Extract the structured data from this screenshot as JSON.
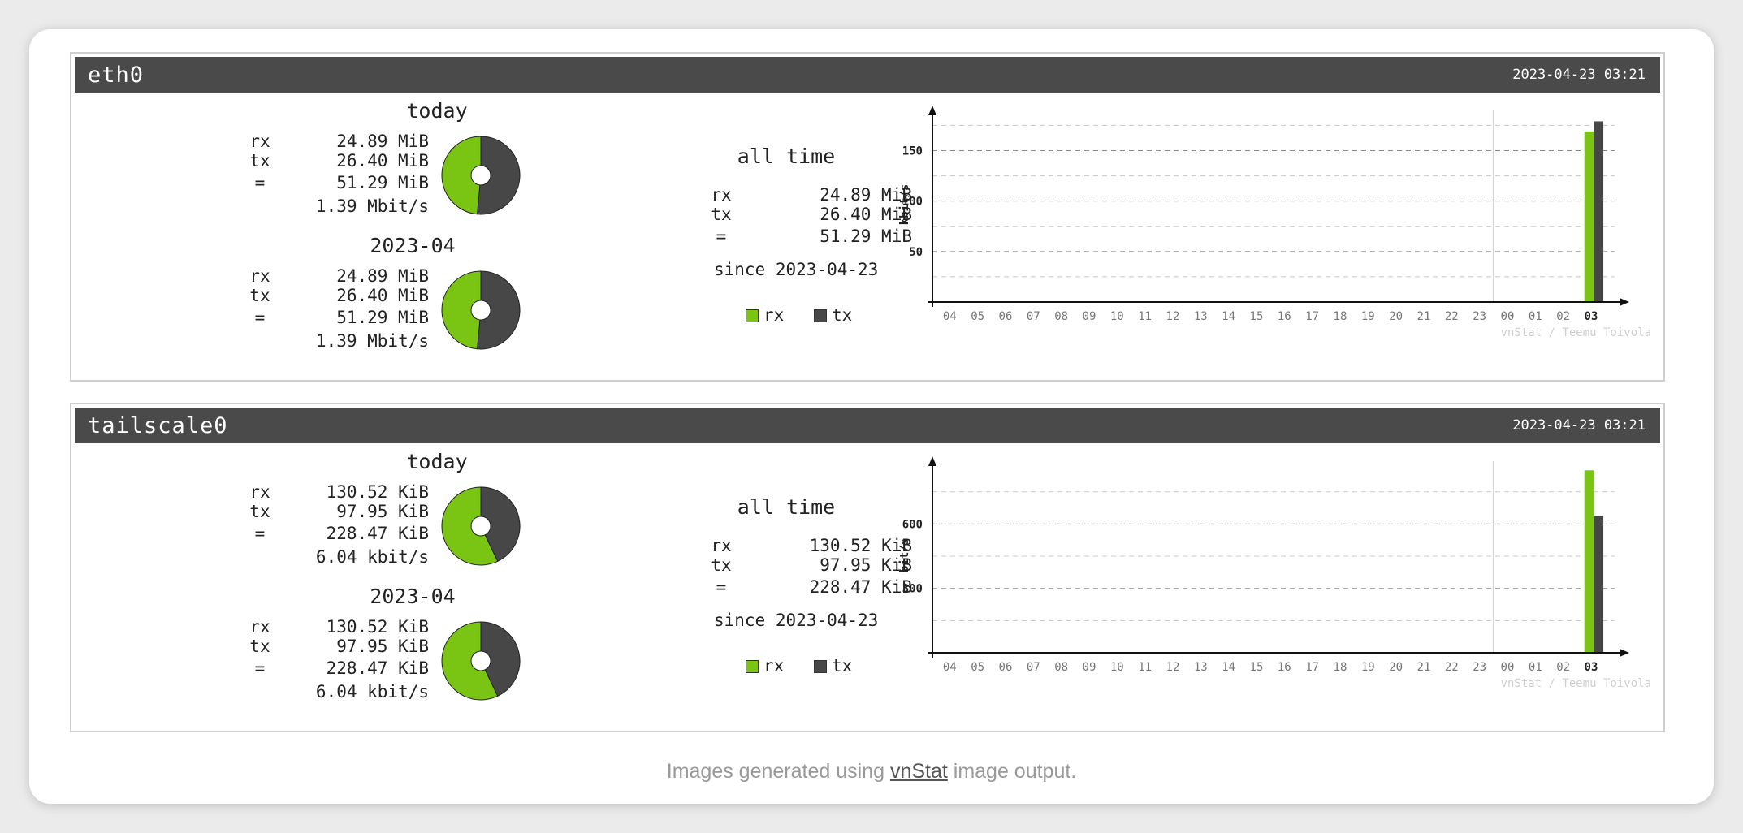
{
  "colors": {
    "rx": "#7ac514",
    "tx": "#474747",
    "header": "#4a4a4a"
  },
  "interfaces": [
    {
      "name": "eth0",
      "timestamp": "2023-04-23 03:21",
      "today": {
        "title": "today",
        "rx": "24.89 MiB",
        "tx": "26.40 MiB",
        "total": "51.29 MiB",
        "rate": "1.39 Mbit/s",
        "rx_fraction": 0.485
      },
      "month": {
        "title": "2023-04",
        "rx": "24.89 MiB",
        "tx": "26.40 MiB",
        "total": "51.29 MiB",
        "rate": "1.39 Mbit/s",
        "rx_fraction": 0.485
      },
      "alltime": {
        "title": "all time",
        "rx": "24.89 MiB",
        "tx": "26.40 MiB",
        "total": "51.29 MiB",
        "since": "since 2023-04-23"
      },
      "chart_data": {
        "type": "bar",
        "ylabel": "kbit/s",
        "yticks": [
          50,
          100,
          150
        ],
        "ylim": [
          0,
          185
        ],
        "categories": [
          "04",
          "05",
          "06",
          "07",
          "08",
          "09",
          "10",
          "11",
          "12",
          "13",
          "14",
          "15",
          "16",
          "17",
          "18",
          "19",
          "20",
          "21",
          "22",
          "23",
          "00",
          "01",
          "02",
          "03"
        ],
        "series": [
          {
            "name": "rx",
            "values": [
              0,
              0,
              0,
              0,
              0,
              0,
              0,
              0,
              0,
              0,
              0,
              0,
              0,
              0,
              0,
              0,
              0,
              0,
              0,
              0,
              0,
              0,
              0,
              169
            ]
          },
          {
            "name": "tx",
            "values": [
              0,
              0,
              0,
              0,
              0,
              0,
              0,
              0,
              0,
              0,
              0,
              0,
              0,
              0,
              0,
              0,
              0,
              0,
              0,
              0,
              0,
              0,
              0,
              179
            ]
          }
        ],
        "grid": true,
        "credit": "vnStat / Teemu Toivola"
      }
    },
    {
      "name": "tailscale0",
      "timestamp": "2023-04-23 03:21",
      "today": {
        "title": "today",
        "rx": "130.52 KiB",
        "tx": "97.95 KiB",
        "total": "228.47 KiB",
        "rate": "6.04 kbit/s",
        "rx_fraction": 0.571
      },
      "month": {
        "title": "2023-04",
        "rx": "130.52 KiB",
        "tx": "97.95 KiB",
        "total": "228.47 KiB",
        "rate": "6.04 kbit/s",
        "rx_fraction": 0.571
      },
      "alltime": {
        "title": "all time",
        "rx": "130.52 KiB",
        "tx": "97.95 KiB",
        "total": "228.47 KiB",
        "since": "since 2023-04-23"
      },
      "chart_data": {
        "type": "bar",
        "ylabel": "bit/s",
        "yticks": [
          300,
          600
        ],
        "ylim": [
          0,
          870
        ],
        "categories": [
          "04",
          "05",
          "06",
          "07",
          "08",
          "09",
          "10",
          "11",
          "12",
          "13",
          "14",
          "15",
          "16",
          "17",
          "18",
          "19",
          "20",
          "21",
          "22",
          "23",
          "00",
          "01",
          "02",
          "03"
        ],
        "series": [
          {
            "name": "rx",
            "values": [
              0,
              0,
              0,
              0,
              0,
              0,
              0,
              0,
              0,
              0,
              0,
              0,
              0,
              0,
              0,
              0,
              0,
              0,
              0,
              0,
              0,
              0,
              0,
              850
            ]
          },
          {
            "name": "tx",
            "values": [
              0,
              0,
              0,
              0,
              0,
              0,
              0,
              0,
              0,
              0,
              0,
              0,
              0,
              0,
              0,
              0,
              0,
              0,
              0,
              0,
              0,
              0,
              0,
              638
            ]
          }
        ],
        "grid": true,
        "credit": "vnStat / Teemu Toivola"
      }
    }
  ],
  "legend": {
    "rx": "rx",
    "tx": "tx"
  },
  "stat_labels": {
    "rx": "rx",
    "tx": "tx",
    "total": "="
  },
  "footer": {
    "prefix": "Images generated using ",
    "link": "vnStat",
    "suffix": " image output."
  }
}
